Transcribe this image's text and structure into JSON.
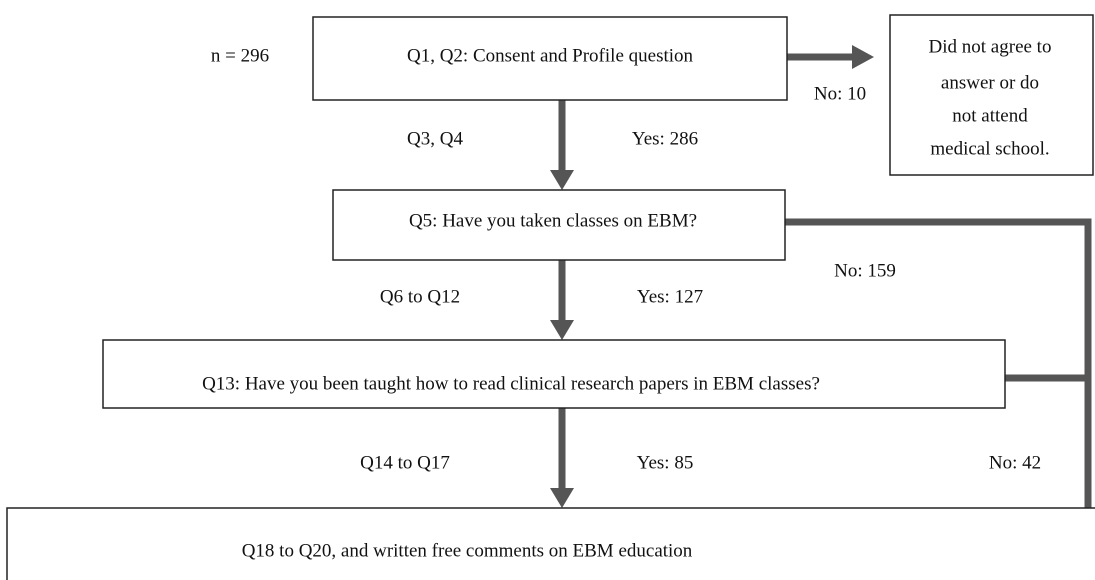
{
  "sample_size": "n = 296",
  "nodes": [
    {
      "label": "Q1, Q2: Consent and Profile question"
    },
    {
      "lines": [
        "Did not agree to",
        "answer or do",
        "not attend",
        "medical school."
      ]
    },
    {
      "label": "Q5: Have you taken classes on EBM?"
    },
    {
      "label": "Q13: Have you been taught how to read clinical research papers in EBM classes?"
    },
    {
      "label": "Q18 to Q20, and written free comments on EBM education"
    }
  ],
  "edges": [
    {
      "label": "No: 10"
    },
    {
      "questions": "Q3, Q4",
      "label": "Yes: 286"
    },
    {
      "label": "No: 159"
    },
    {
      "questions": "Q6 to Q12",
      "label": "Yes: 127"
    },
    {
      "questions": "Q14 to Q17",
      "label": "Yes: 85"
    },
    {
      "label": "No: 42"
    }
  ]
}
